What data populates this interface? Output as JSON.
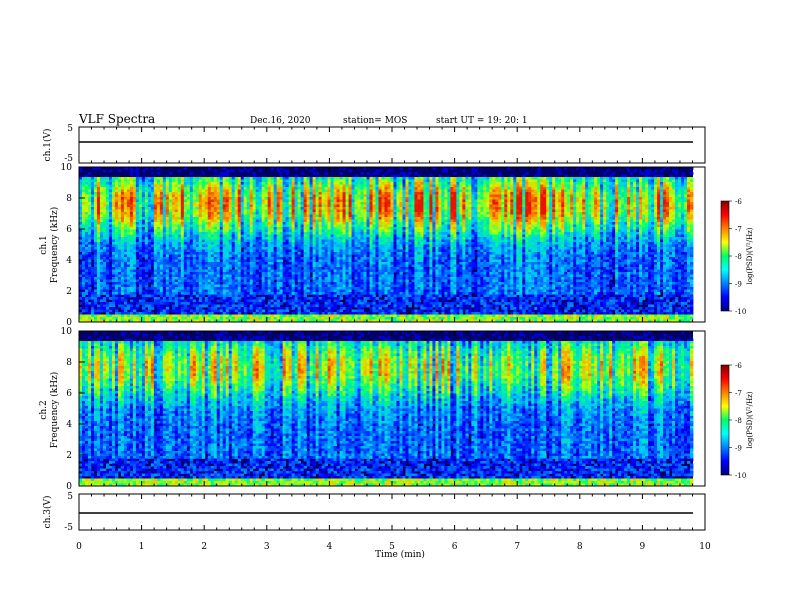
{
  "header": {
    "title": "VLF Spectra",
    "date": "Dec.16, 2020",
    "station": "station= MOS",
    "start": "start UT =   19: 20: 1"
  },
  "chart_data": [
    {
      "type": "line",
      "panel": "ch1-voltage",
      "ylabel": "ch.1(V)",
      "ylim": [
        -5,
        5
      ],
      "yticks": [
        "5",
        "-5"
      ],
      "xlim": [
        0,
        10
      ],
      "series": [
        {
          "x": [
            0,
            9.83
          ],
          "y": [
            0,
            0
          ]
        }
      ]
    },
    {
      "type": "heatmap",
      "panel": "ch1-spectrogram",
      "ylabel": "Frequency (kHz)",
      "channel_label": "ch.1",
      "ylim": [
        0,
        10
      ],
      "yticks": [
        "0",
        "2",
        "4",
        "6",
        "8",
        "10"
      ],
      "xlim": [
        0,
        9.83
      ],
      "colorbar": {
        "label": "log(PSD)(V²/Hz)",
        "range": [
          -10,
          -6
        ],
        "ticks": [
          "-6",
          "-7",
          "-8",
          "-9",
          "-10"
        ]
      }
    },
    {
      "type": "heatmap",
      "panel": "ch2-spectrogram",
      "ylabel": "Frequency (kHz)",
      "channel_label": "ch.2",
      "ylim": [
        0,
        10
      ],
      "yticks": [
        "0",
        "2",
        "4",
        "6",
        "8",
        "10"
      ],
      "xlim": [
        0,
        9.83
      ],
      "colorbar": {
        "label": "log(PSD)(V²/Hz)",
        "range": [
          -10,
          -6
        ],
        "ticks": [
          "-6",
          "-7",
          "-8",
          "-9",
          "-10"
        ]
      }
    },
    {
      "type": "line",
      "panel": "ch3-voltage",
      "ylabel": "ch.3(V)",
      "ylim": [
        -5,
        5
      ],
      "yticks": [
        "5",
        "-5"
      ],
      "xlim": [
        0,
        10
      ],
      "series": [
        {
          "x": [
            0,
            9.83
          ],
          "y": [
            0,
            0
          ]
        }
      ]
    }
  ],
  "xaxis": {
    "label": "Time (min)",
    "ticks": [
      "0",
      "1",
      "2",
      "3",
      "4",
      "5",
      "6",
      "7",
      "8",
      "9",
      "10"
    ]
  },
  "colors": {
    "background": "#000066",
    "trace": "#000000"
  }
}
